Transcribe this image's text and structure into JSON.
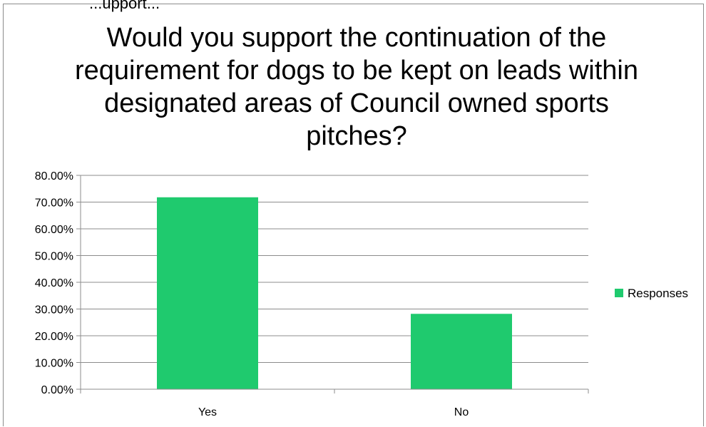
{
  "header_clip": "...upport...",
  "chart_data": {
    "type": "bar",
    "title": "Would you support the continuation of the requirement for dogs to be kept on leads within designated areas of Council owned sports pitches?",
    "categories": [
      "Yes",
      "No"
    ],
    "series": [
      {
        "name": "Responses",
        "values": [
          71.8,
          28.2
        ],
        "color": "#1fca6e"
      }
    ],
    "y_ticks": [
      "0.00%",
      "10.00%",
      "20.00%",
      "30.00%",
      "40.00%",
      "50.00%",
      "60.00%",
      "70.00%",
      "80.00%"
    ],
    "ylim": [
      0,
      80
    ],
    "grid": true,
    "legend": "right"
  }
}
